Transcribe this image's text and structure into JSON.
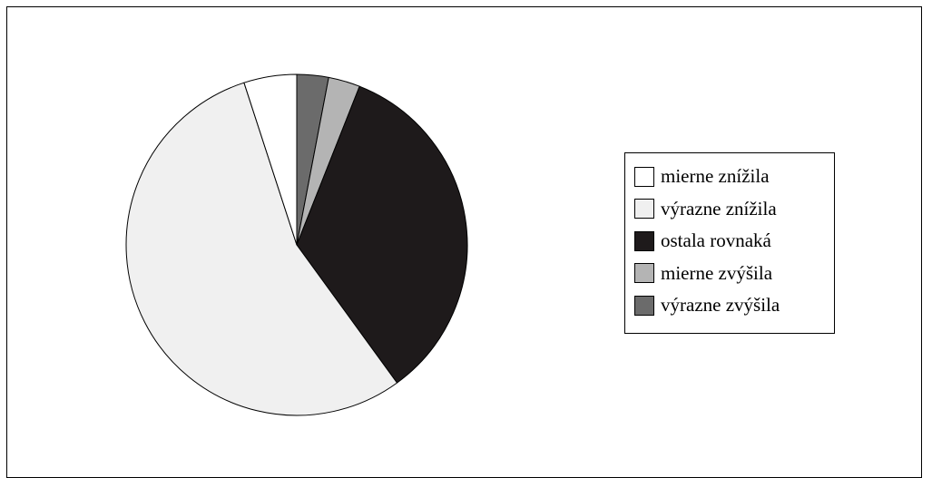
{
  "chart_data": {
    "type": "pie",
    "title": "",
    "legend_position": "right",
    "slices": [
      {
        "label": "výrazne zvýšila",
        "value": 3,
        "color": "#6b6b6b"
      },
      {
        "label": "mierne zvýšila",
        "value": 3,
        "color": "#b4b4b4"
      },
      {
        "label": "ostala rovnaká",
        "value": 34,
        "color": "#1e1a1b"
      },
      {
        "label": "výrazne znížila",
        "value": 55,
        "color": "#f0f0f0"
      },
      {
        "label": "mierne znížila",
        "value": 5,
        "color": "#ffffff"
      }
    ],
    "legend": [
      {
        "label": "mierne znížila",
        "color": "#ffffff"
      },
      {
        "label": "výrazne znížila",
        "color": "#f0f0f0"
      },
      {
        "label": "ostala rovnaká",
        "color": "#1e1a1b"
      },
      {
        "label": "mierne zvýšila",
        "color": "#b4b4b4"
      },
      {
        "label": "výrazne zvýšila",
        "color": "#6b6b6b"
      }
    ]
  }
}
